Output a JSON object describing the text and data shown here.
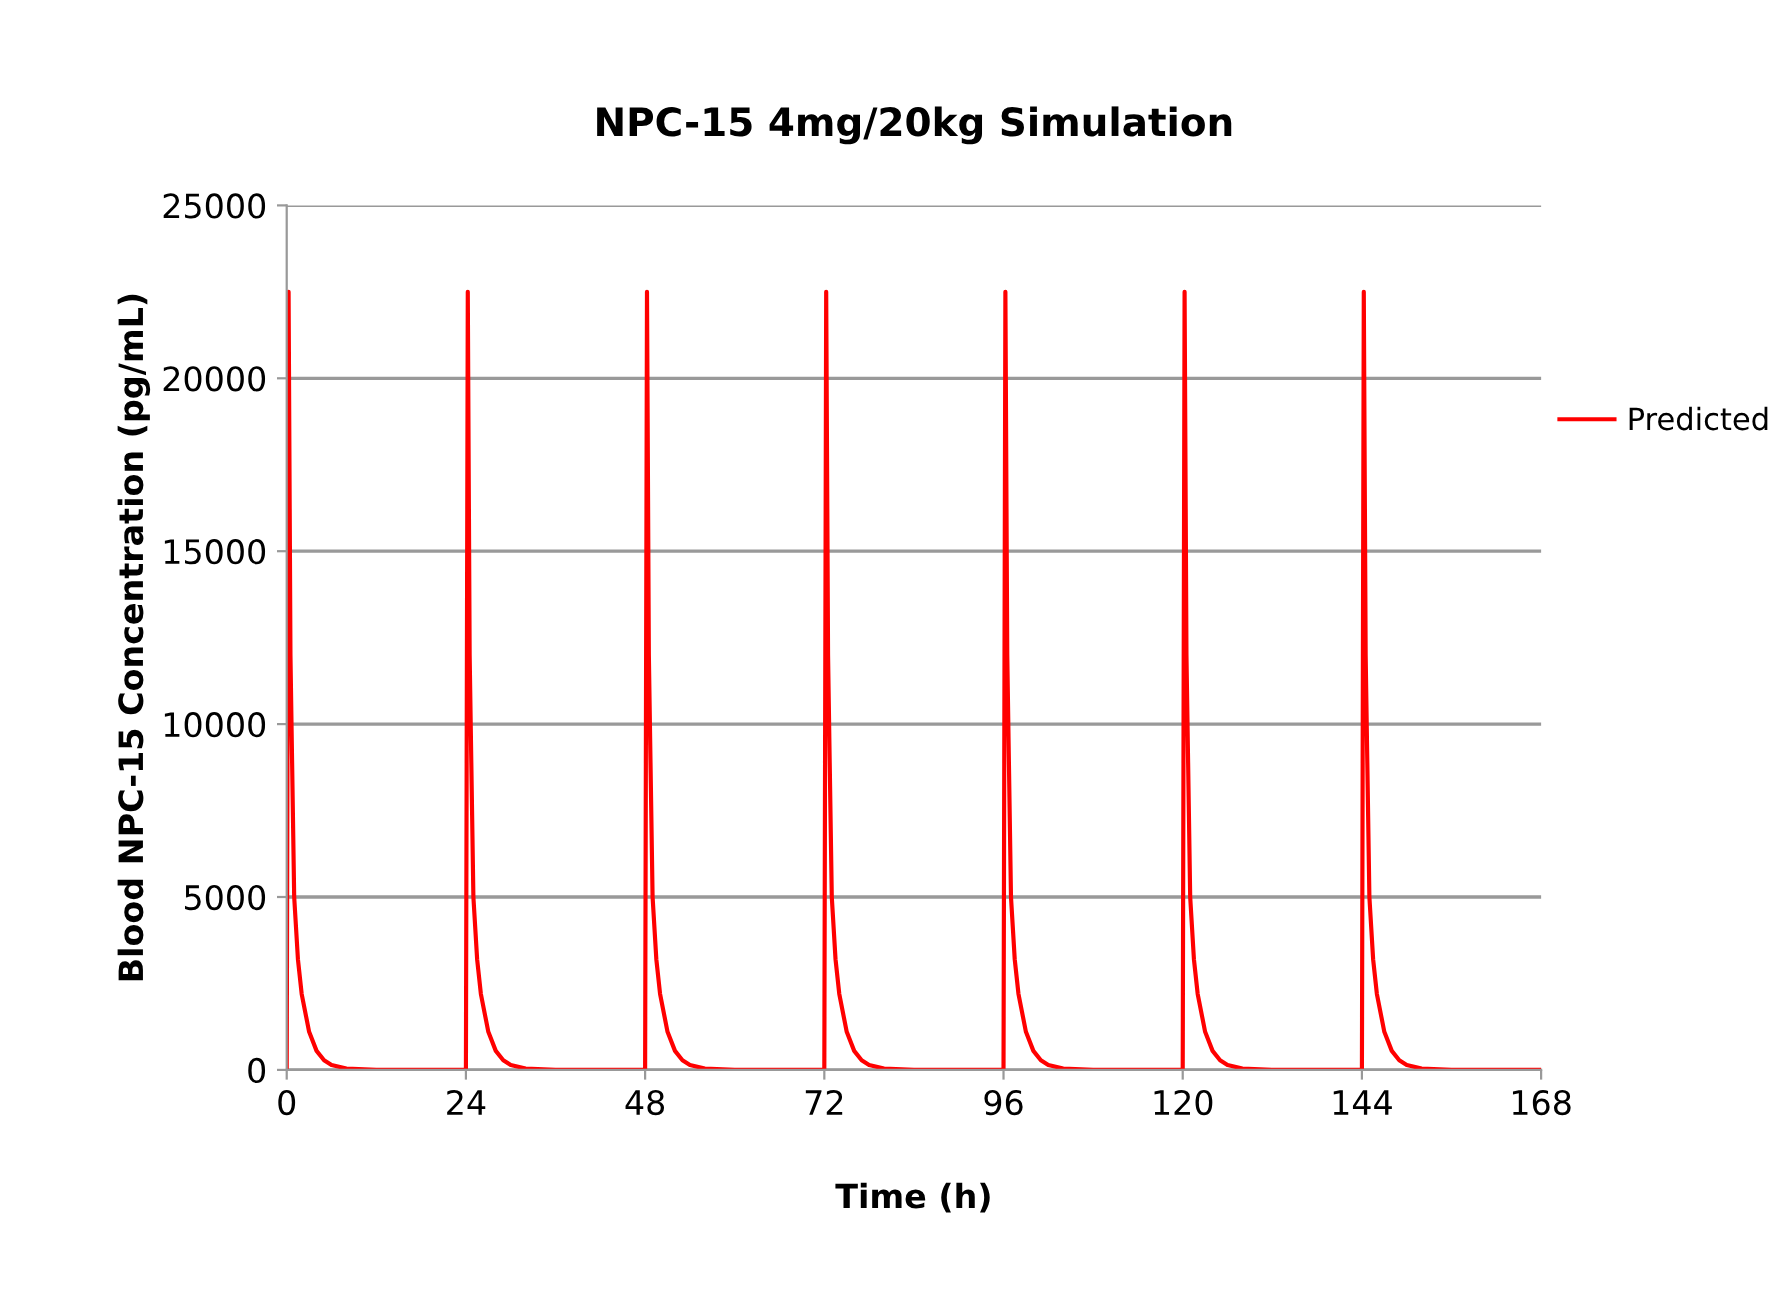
{
  "chart_data": {
    "type": "line",
    "title": "NPC-15 4mg/20kg Simulation",
    "xlabel": "Time (h)",
    "ylabel": "Blood NPC-15 Concentration (pg/mL)",
    "series": [
      {
        "name": "Predicted",
        "color": "#ff0000",
        "x": [
          0,
          0.25,
          0.5,
          1,
          1.5,
          2,
          3,
          4,
          5,
          6,
          8,
          12,
          24,
          24.25,
          24.5,
          25,
          25.5,
          26,
          27,
          28,
          29,
          30,
          32,
          36,
          48,
          48.25,
          48.5,
          49,
          49.5,
          50,
          51,
          52,
          53,
          54,
          56,
          60,
          72,
          72.25,
          72.5,
          73,
          73.5,
          74,
          75,
          76,
          77,
          78,
          80,
          84,
          96,
          96.25,
          96.5,
          97,
          97.5,
          98,
          99,
          100,
          101,
          102,
          104,
          108,
          120,
          120.25,
          120.5,
          121,
          121.5,
          122,
          123,
          124,
          125,
          126,
          128,
          132,
          144,
          144.25,
          144.5,
          145,
          145.5,
          146,
          147,
          148,
          149,
          150,
          152,
          156,
          168
        ],
        "values": [
          0,
          22500,
          12000,
          5000,
          3200,
          2200,
          1100,
          550,
          280,
          140,
          40,
          0,
          0,
          22500,
          12000,
          5000,
          3200,
          2200,
          1100,
          550,
          280,
          140,
          40,
          0,
          0,
          22500,
          12000,
          5000,
          3200,
          2200,
          1100,
          550,
          280,
          140,
          40,
          0,
          0,
          22500,
          12000,
          5000,
          3200,
          2200,
          1100,
          550,
          280,
          140,
          40,
          0,
          0,
          22500,
          12000,
          5000,
          3200,
          2200,
          1100,
          550,
          280,
          140,
          40,
          0,
          0,
          22500,
          12000,
          5000,
          3200,
          2200,
          1100,
          550,
          280,
          140,
          40,
          0,
          0,
          22500,
          12000,
          5000,
          3200,
          2200,
          1100,
          550,
          280,
          140,
          40,
          0,
          0
        ]
      }
    ],
    "xlim": [
      0,
      168
    ],
    "xticks": [
      0,
      24,
      48,
      72,
      96,
      120,
      144,
      168
    ],
    "ylim": [
      0,
      25000
    ],
    "yticks": [
      0,
      5000,
      10000,
      15000,
      20000,
      25000
    ],
    "grid": "y",
    "legend": "right",
    "marker": "none",
    "line_style": "solid"
  }
}
